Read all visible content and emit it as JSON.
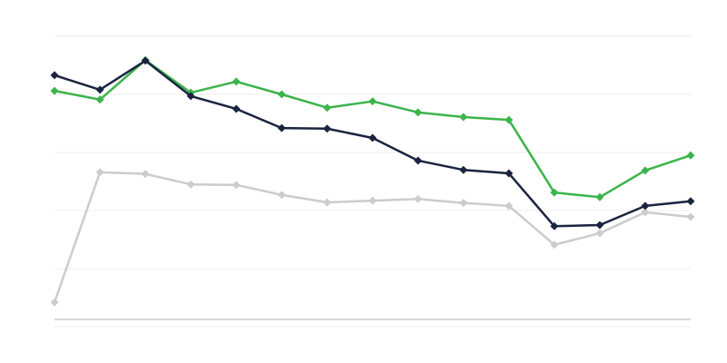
{
  "chart_data": {
    "type": "line",
    "title": "",
    "xlabel": "",
    "ylabel": "",
    "x": [
      1,
      2,
      3,
      4,
      5,
      6,
      7,
      8,
      9,
      10,
      11,
      12,
      13,
      14,
      15
    ],
    "ylim": [
      0,
      5
    ],
    "grid": true,
    "gridlines": [
      1,
      2,
      3,
      4,
      5
    ],
    "legend": "none",
    "marker": "diamond",
    "series": [
      {
        "color": "#cccccc",
        "values": [
          0.42,
          2.66,
          2.63,
          2.45,
          2.44,
          2.27,
          2.14,
          2.17,
          2.2,
          2.13,
          2.08,
          1.41,
          1.61,
          1.97,
          1.89
        ]
      },
      {
        "color": "#3cb44b",
        "values": [
          4.06,
          3.91,
          4.59,
          4.03,
          4.22,
          4.0,
          3.77,
          3.88,
          3.69,
          3.61,
          3.56,
          2.31,
          2.23,
          2.69,
          2.95
        ]
      },
      {
        "color": "#1b2440",
        "values": [
          4.33,
          4.08,
          4.58,
          3.97,
          3.75,
          3.42,
          3.41,
          3.25,
          2.86,
          2.7,
          2.64,
          1.73,
          1.75,
          2.08,
          2.16
        ]
      }
    ]
  }
}
